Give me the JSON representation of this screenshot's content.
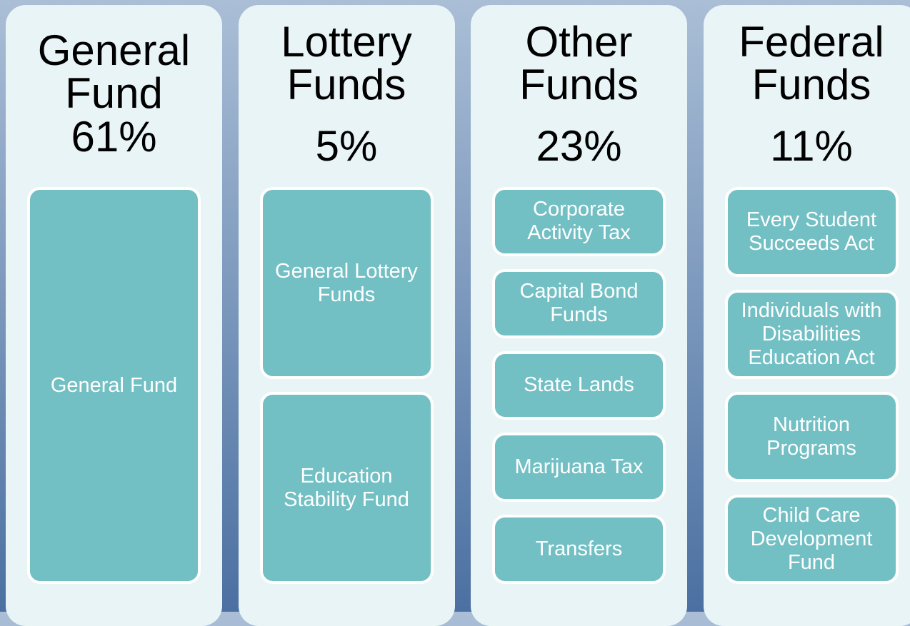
{
  "columns": [
    {
      "title": "General Fund",
      "percent": "61%",
      "items": [
        "General Fund"
      ]
    },
    {
      "title": "Lottery Funds",
      "percent": "5%",
      "items": [
        "General Lottery Funds",
        "Education Stability Fund"
      ]
    },
    {
      "title": "Other Funds",
      "percent": "23%",
      "items": [
        "Corporate Activity Tax",
        "Capital Bond Funds",
        "State Lands",
        "Marijuana Tax",
        "Transfers"
      ]
    },
    {
      "title": "Federal Funds",
      "percent": "11%",
      "items": [
        "Every Student Succeeds Act",
        "Individuals with Disabilities Education Act",
        "Nutrition Programs",
        "Child Care Development Fund"
      ]
    }
  ]
}
